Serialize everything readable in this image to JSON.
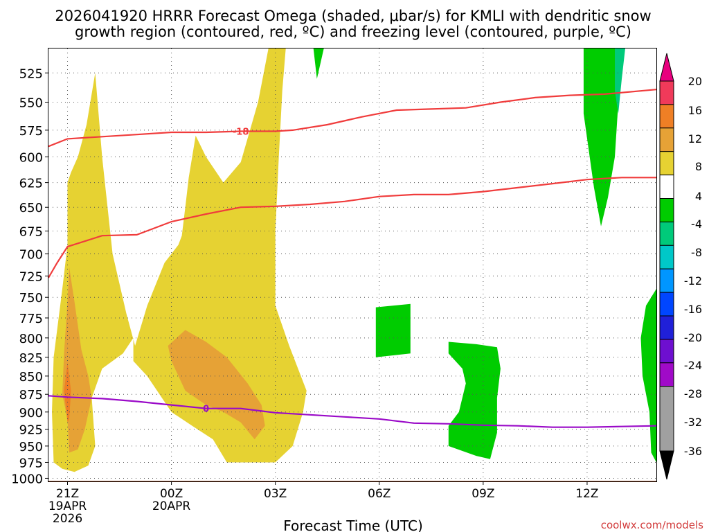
{
  "title_line1": "2026041920 HRRR Forecast Omega (shaded, μbar/s) for KMLI with dendritic snow",
  "title_line2": "growth region (contoured, red, ºC) and freezing level (contoured, purple, ºC)",
  "credit": "coolwx.com/models",
  "chart_data": {
    "type": "area",
    "xlabel": "Forecast Time (UTC)",
    "x_ticks": [
      {
        "hour": 21,
        "label": "21Z",
        "sub1": "19APR",
        "sub2": "2026"
      },
      {
        "hour": 24,
        "label": "00Z",
        "sub1": "20APR",
        "sub2": ""
      },
      {
        "hour": 27,
        "label": "03Z",
        "sub1": "",
        "sub2": ""
      },
      {
        "hour": 30,
        "label": "06Z",
        "sub1": "",
        "sub2": ""
      },
      {
        "hour": 33,
        "label": "09Z",
        "sub1": "",
        "sub2": ""
      },
      {
        "hour": 36,
        "label": "12Z",
        "sub1": "",
        "sub2": ""
      }
    ],
    "xlim": [
      20.45,
      38.0
    ],
    "ylabel": "",
    "y_ticks": [
      525,
      550,
      575,
      600,
      625,
      650,
      675,
      700,
      725,
      750,
      775,
      800,
      825,
      850,
      875,
      900,
      925,
      950,
      975,
      1000
    ],
    "y_scale": "log-pressure (inverted)",
    "ylim": [
      1005,
      505
    ],
    "grid": true,
    "colorbar": {
      "labels": [
        "20",
        "16",
        "12",
        "8",
        "4",
        "-4",
        "-8",
        "-12",
        "-16",
        "-20",
        "-24",
        "-28",
        "-32",
        "-36"
      ],
      "colors": [
        "#f03a5a",
        "#ef7f25",
        "#e6a236",
        "#e6d232",
        "#ffffff",
        "#00cc00",
        "#00ca7a",
        "#00c8c8",
        "#0096ff",
        "#0046ff",
        "#2020d8",
        "#6e0fd0",
        "#a00ac8",
        "#a0a0a0"
      ],
      "top_color": "#e8007e",
      "bottom_color": "#000000"
    },
    "shaded_regions": [
      {
        "class": "4",
        "color": "#e6d232",
        "points": [
          [
            20.6,
            975
          ],
          [
            20.55,
            900
          ],
          [
            20.6,
            825
          ],
          [
            20.85,
            740
          ],
          [
            21.0,
            690
          ],
          [
            21.0,
            625
          ],
          [
            21.1,
            615
          ],
          [
            21.3,
            600
          ],
          [
            21.55,
            570
          ],
          [
            21.8,
            525
          ],
          [
            22.0,
            600
          ],
          [
            22.3,
            700
          ],
          [
            22.7,
            770
          ],
          [
            22.95,
            810
          ],
          [
            23.3,
            760
          ],
          [
            23.8,
            710
          ],
          [
            24.2,
            690
          ],
          [
            24.3,
            680
          ],
          [
            24.4,
            650
          ],
          [
            24.5,
            620
          ],
          [
            24.7,
            580
          ],
          [
            25.0,
            600
          ],
          [
            25.5,
            625
          ],
          [
            26.0,
            605
          ],
          [
            26.5,
            550
          ],
          [
            26.8,
            505
          ],
          [
            27.3,
            505
          ],
          [
            27.2,
            540
          ],
          [
            27.1,
            600
          ],
          [
            27.0,
            675
          ],
          [
            27.0,
            760
          ],
          [
            27.4,
            810
          ],
          [
            27.9,
            870
          ],
          [
            27.8,
            900
          ],
          [
            27.5,
            950
          ],
          [
            27.0,
            975
          ],
          [
            25.6,
            975
          ],
          [
            25.2,
            940
          ],
          [
            24.6,
            920
          ],
          [
            24.0,
            900
          ],
          [
            23.3,
            850
          ],
          [
            22.9,
            830
          ],
          [
            22.9,
            800
          ],
          [
            22.6,
            820
          ],
          [
            22.0,
            840
          ],
          [
            21.7,
            880
          ],
          [
            21.8,
            950
          ],
          [
            21.6,
            980
          ],
          [
            21.2,
            990
          ],
          [
            20.85,
            985
          ]
        ]
      },
      {
        "class": "8",
        "color": "#e6a236",
        "points": [
          [
            21.0,
            910
          ],
          [
            20.85,
            875
          ],
          [
            20.9,
            820
          ],
          [
            21.0,
            755
          ],
          [
            21.05,
            715
          ],
          [
            21.2,
            755
          ],
          [
            21.4,
            815
          ],
          [
            21.6,
            850
          ],
          [
            21.7,
            880
          ],
          [
            21.5,
            925
          ],
          [
            21.3,
            955
          ],
          [
            21.05,
            960
          ]
        ]
      },
      {
        "class": "12",
        "color": "#ef7f25",
        "points": [
          [
            21.0,
            915
          ],
          [
            20.9,
            870
          ],
          [
            21.0,
            832
          ],
          [
            21.1,
            870
          ],
          [
            21.05,
            910
          ]
        ]
      },
      {
        "class": "8",
        "color": "#e6a236",
        "points": [
          [
            24.0,
            830
          ],
          [
            23.9,
            810
          ],
          [
            24.4,
            790
          ],
          [
            25.0,
            805
          ],
          [
            25.6,
            825
          ],
          [
            26.2,
            860
          ],
          [
            26.6,
            890
          ],
          [
            26.7,
            920
          ],
          [
            26.4,
            940
          ],
          [
            26.0,
            915
          ],
          [
            25.5,
            900
          ],
          [
            25.0,
            890
          ],
          [
            24.4,
            870
          ]
        ]
      },
      {
        "class": "-4",
        "color": "#00cc00",
        "points": [
          [
            35.9,
            505
          ],
          [
            37.0,
            505
          ],
          [
            36.8,
            600
          ],
          [
            36.6,
            640
          ],
          [
            36.4,
            670
          ],
          [
            36.2,
            630
          ],
          [
            35.9,
            560
          ]
        ]
      },
      {
        "class": "-8",
        "color": "#00ca7a",
        "points": [
          [
            36.8,
            505
          ],
          [
            37.1,
            505
          ],
          [
            37.0,
            530
          ],
          [
            36.9,
            560
          ],
          [
            36.8,
            540
          ]
        ]
      },
      {
        "class": "-4",
        "color": "#00cc00",
        "points": [
          [
            28.1,
            505
          ],
          [
            28.4,
            505
          ],
          [
            28.2,
            530
          ]
        ]
      },
      {
        "class": "-4",
        "color": "#00cc00",
        "points": [
          [
            29.9,
            762
          ],
          [
            30.9,
            758
          ],
          [
            30.9,
            820
          ],
          [
            29.9,
            825
          ]
        ]
      },
      {
        "class": "-4",
        "color": "#00cc00",
        "points": [
          [
            32.0,
            805
          ],
          [
            32.8,
            808
          ],
          [
            33.4,
            812
          ],
          [
            33.5,
            840
          ],
          [
            33.4,
            880
          ],
          [
            33.4,
            930
          ],
          [
            33.2,
            970
          ],
          [
            32.8,
            965
          ],
          [
            32.0,
            950
          ],
          [
            32.0,
            920
          ],
          [
            32.3,
            900
          ],
          [
            32.5,
            860
          ],
          [
            32.4,
            840
          ],
          [
            32.0,
            820
          ]
        ]
      },
      {
        "class": "-4",
        "color": "#00cc00",
        "points": [
          [
            38.0,
            740
          ],
          [
            37.7,
            760
          ],
          [
            37.55,
            800
          ],
          [
            37.6,
            850
          ],
          [
            37.8,
            900
          ],
          [
            37.85,
            960
          ],
          [
            38.0,
            975
          ]
        ]
      }
    ],
    "contours": [
      {
        "name": "dendritic growth (-12)",
        "color": "#f03c3c",
        "label": "",
        "points": [
          [
            20.45,
            727
          ],
          [
            20.7,
            710
          ],
          [
            21.0,
            692
          ],
          [
            21.5,
            686
          ],
          [
            22.0,
            680
          ],
          [
            23.0,
            679
          ],
          [
            23.5,
            672
          ],
          [
            24.0,
            665
          ],
          [
            25.0,
            657
          ],
          [
            26.0,
            650
          ],
          [
            27.0,
            649
          ],
          [
            28.0,
            647
          ],
          [
            29.0,
            644
          ],
          [
            30.0,
            639
          ],
          [
            31.0,
            637
          ],
          [
            32.0,
            637
          ],
          [
            33.0,
            634
          ],
          [
            34.0,
            630
          ],
          [
            35.0,
            626
          ],
          [
            36.0,
            622
          ],
          [
            37.0,
            620
          ],
          [
            38.0,
            620
          ]
        ]
      },
      {
        "name": "dendritic growth (-18)",
        "color": "#f03c3c",
        "label": "-18",
        "label_x": 26.0,
        "points": [
          [
            20.45,
            590
          ],
          [
            21.0,
            583
          ],
          [
            22.0,
            581
          ],
          [
            23.0,
            579
          ],
          [
            24.0,
            577
          ],
          [
            25.0,
            577
          ],
          [
            26.0,
            576
          ],
          [
            27.0,
            576
          ],
          [
            27.5,
            575
          ],
          [
            28.5,
            570
          ],
          [
            29.5,
            563
          ],
          [
            30.5,
            557
          ],
          [
            31.5,
            556
          ],
          [
            32.5,
            555
          ],
          [
            33.5,
            550
          ],
          [
            34.5,
            546
          ],
          [
            35.5,
            544
          ],
          [
            36.5,
            543
          ],
          [
            38.0,
            539
          ]
        ]
      },
      {
        "name": "freezing level (0)",
        "color": "#9a0ac8",
        "label": "0",
        "label_x": 25.0,
        "points": [
          [
            20.45,
            877
          ],
          [
            21.0,
            879
          ],
          [
            22.0,
            881
          ],
          [
            23.0,
            885
          ],
          [
            24.0,
            890
          ],
          [
            25.0,
            895
          ],
          [
            26.0,
            895
          ],
          [
            27.0,
            901
          ],
          [
            28.0,
            904
          ],
          [
            29.0,
            907
          ],
          [
            30.0,
            910
          ],
          [
            31.0,
            916
          ],
          [
            32.0,
            917
          ],
          [
            33.0,
            919
          ],
          [
            34.0,
            920
          ],
          [
            35.0,
            922
          ],
          [
            36.0,
            922
          ],
          [
            37.0,
            921
          ],
          [
            38.0,
            920
          ]
        ]
      }
    ],
    "terrain": {
      "color": "#a0522d",
      "pressure": 1004
    }
  }
}
